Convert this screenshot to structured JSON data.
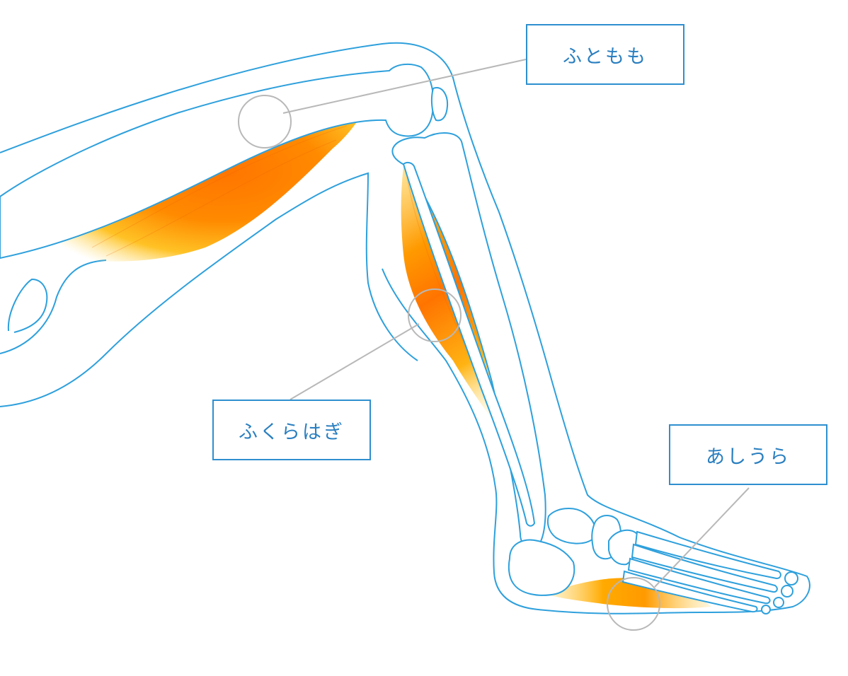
{
  "labels": {
    "thigh": "ふともも",
    "calf": "ふくらはぎ",
    "sole": "あしうら"
  },
  "colors": {
    "outline": "#2ea0dc",
    "label_border": "#2e8fcf",
    "label_text": "#2a7fc0",
    "muscle_core": "#ff7a00",
    "muscle_edge": "#ffc21a",
    "leader_line": "#b8b8b8"
  }
}
